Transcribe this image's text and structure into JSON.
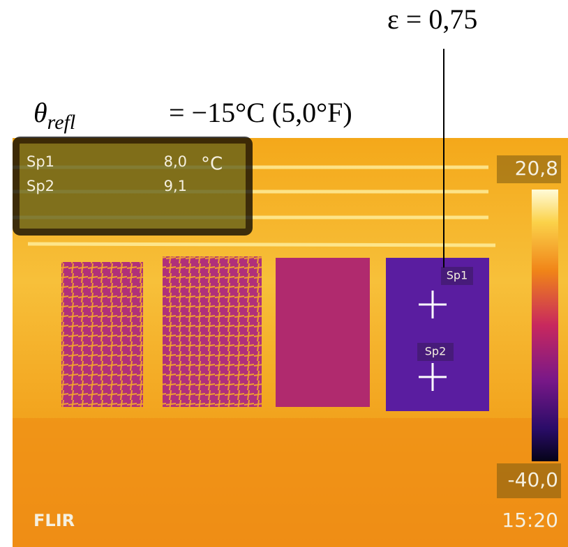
{
  "annotations": {
    "emissivity": "ε = 0,75",
    "reflected_temperature": {
      "symbol": "θ",
      "subscript": "refl",
      "text": "= −15°C (5,0°F)"
    }
  },
  "measurements": {
    "rows": [
      {
        "name": "Sp1",
        "value": "8,0"
      },
      {
        "name": "Sp2",
        "value": "9,1"
      }
    ],
    "unit": "°C"
  },
  "scale": {
    "max": "20,8",
    "min": "-40,0"
  },
  "spots": [
    "Sp1",
    "Sp2"
  ],
  "brand": "FLIR",
  "time": "15:20"
}
